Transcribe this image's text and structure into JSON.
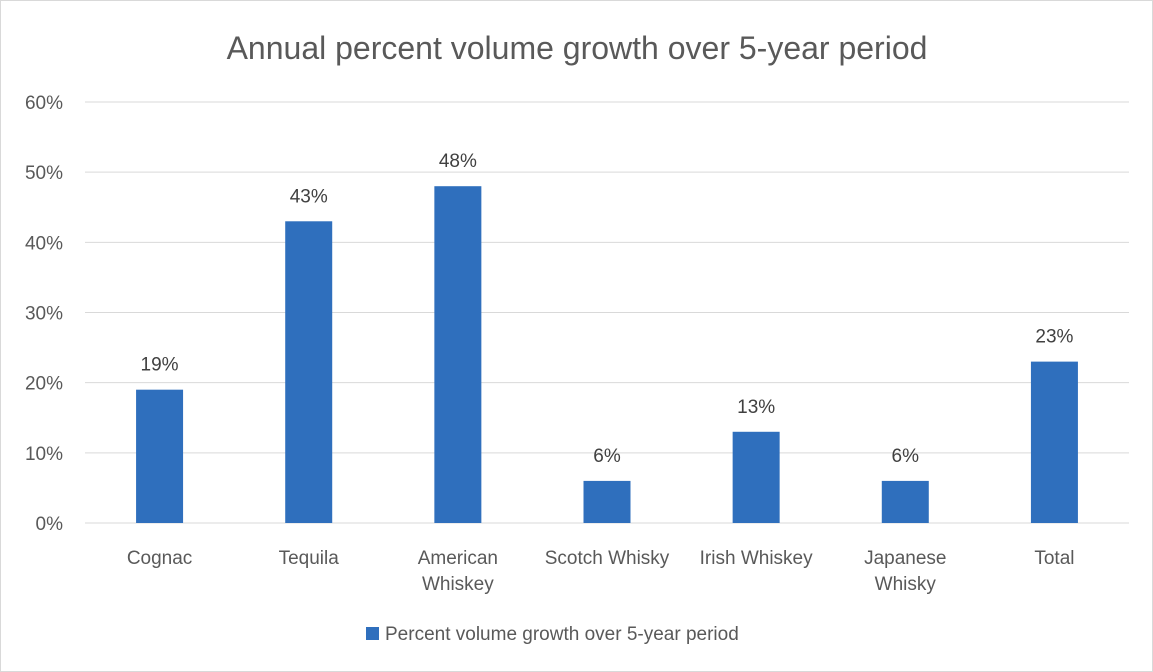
{
  "chart_data": {
    "type": "bar",
    "title": "Annual percent volume growth over 5-year period",
    "categories": [
      [
        "Cognac"
      ],
      [
        "Tequila"
      ],
      [
        "American",
        "Whiskey"
      ],
      [
        "Scotch Whisky"
      ],
      [
        "Irish Whiskey"
      ],
      [
        "Japanese",
        "Whisky"
      ],
      [
        "Total"
      ]
    ],
    "series": [
      {
        "name": "Percent volume growth over 5-year period",
        "values": [
          19,
          43,
          48,
          6,
          13,
          6,
          23
        ],
        "labels": [
          "19%",
          "43%",
          "48%",
          "6%",
          "13%",
          "6%",
          "23%"
        ],
        "color": "#2f6fbd"
      }
    ],
    "ylim": [
      0,
      60
    ],
    "yticks": [
      0,
      10,
      20,
      30,
      40,
      50,
      60
    ],
    "ytick_labels": [
      "0%",
      "10%",
      "20%",
      "30%",
      "40%",
      "50%",
      "60%"
    ],
    "grid": true,
    "legend_position": "bottom"
  }
}
